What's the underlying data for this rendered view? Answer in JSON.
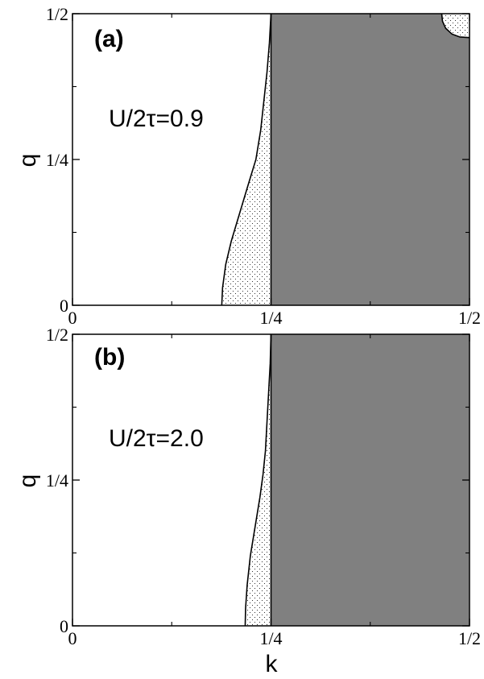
{
  "colors": {
    "gap_fill": "#808080",
    "boundary": "#000000",
    "stipple": "#000000",
    "background": "#ffffff"
  },
  "chart_data": [
    {
      "type": "area",
      "panel_label": "(a)",
      "annotation": "U/2τ=0.9",
      "xlabel": "",
      "ylabel": "q",
      "xlim": [
        0,
        0.5
      ],
      "ylim": [
        0,
        0.5
      ],
      "x_ticks": [
        0,
        0.25,
        0.5
      ],
      "x_tick_labels": [
        "0",
        "1/4",
        "1/2"
      ],
      "y_ticks": [
        0,
        0.25,
        0.5
      ],
      "y_tick_labels": [
        "0",
        "1/4",
        "1/2"
      ],
      "gray_region": {
        "k_from": 0.25,
        "k_to": 0.5,
        "q_from": 0,
        "q_to": 0.5
      },
      "dotted_boundary": [
        [
          0.188,
          0.0
        ],
        [
          0.189,
          0.03
        ],
        [
          0.193,
          0.07
        ],
        [
          0.2,
          0.11
        ],
        [
          0.211,
          0.16
        ],
        [
          0.222,
          0.21
        ],
        [
          0.231,
          0.25
        ],
        [
          0.237,
          0.3
        ],
        [
          0.241,
          0.35
        ],
        [
          0.245,
          0.4
        ],
        [
          0.248,
          0.45
        ],
        [
          0.25,
          0.5
        ]
      ],
      "dotted_corner": [
        [
          0.465,
          0.5
        ],
        [
          0.466,
          0.487
        ],
        [
          0.47,
          0.475
        ],
        [
          0.478,
          0.465
        ],
        [
          0.488,
          0.46
        ],
        [
          0.5,
          0.459
        ]
      ]
    },
    {
      "type": "area",
      "panel_label": "(b)",
      "annotation": "U/2τ=2.0",
      "xlabel": "k",
      "ylabel": "q",
      "xlim": [
        0,
        0.5
      ],
      "ylim": [
        0,
        0.5
      ],
      "x_ticks": [
        0,
        0.25,
        0.5
      ],
      "x_tick_labels": [
        "0",
        "1/4",
        "1/2"
      ],
      "y_ticks": [
        0,
        0.25,
        0.5
      ],
      "y_tick_labels": [
        "0",
        "1/4",
        "1/2"
      ],
      "gray_region": {
        "k_from": 0.25,
        "k_to": 0.5,
        "q_from": 0,
        "q_to": 0.5
      },
      "dotted_boundary": [
        [
          0.2175,
          0.0
        ],
        [
          0.218,
          0.03
        ],
        [
          0.22,
          0.07
        ],
        [
          0.224,
          0.12
        ],
        [
          0.23,
          0.17
        ],
        [
          0.236,
          0.22
        ],
        [
          0.24,
          0.26
        ],
        [
          0.243,
          0.3
        ],
        [
          0.245,
          0.35
        ],
        [
          0.247,
          0.4
        ],
        [
          0.249,
          0.45
        ],
        [
          0.25,
          0.5
        ]
      ],
      "dotted_corner": []
    }
  ]
}
